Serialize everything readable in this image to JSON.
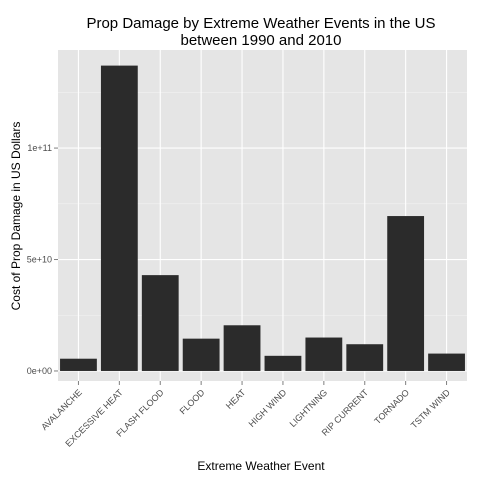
{
  "chart_data": {
    "type": "bar",
    "title": [
      "Prop Damage by Extreme Weather Events in the US",
      "between 1990 and 2010"
    ],
    "xlabel": "Extreme Weather Event",
    "ylabel": "Cost of Prop Damage in US Dollars",
    "categories": [
      "AVALANCHE",
      "EXCESSIVE HEAT",
      "FLASH FLOOD",
      "FLOOD",
      "HEAT",
      "HIGH WIND",
      "LIGHTNING",
      "RIP CURRENT",
      "TORNADO",
      "TSTM WIND"
    ],
    "values": [
      5500000000,
      137000000000,
      43000000000,
      14500000000,
      20500000000,
      6800000000,
      15000000000,
      12000000000,
      69500000000,
      7800000000
    ],
    "ylim": [
      -4500000000,
      144000000000
    ],
    "yticks": [
      {
        "value": 0,
        "label": "0e+00"
      },
      {
        "value": 50000000000,
        "label": "5e+10"
      },
      {
        "value": 100000000000,
        "label": "1e+11"
      }
    ],
    "grid": true,
    "colors": {
      "panel": "#e5e5e5",
      "grid_major": "#ffffff",
      "grid_minor": "#f2f2f2",
      "bar": "#2b2b2b"
    }
  }
}
